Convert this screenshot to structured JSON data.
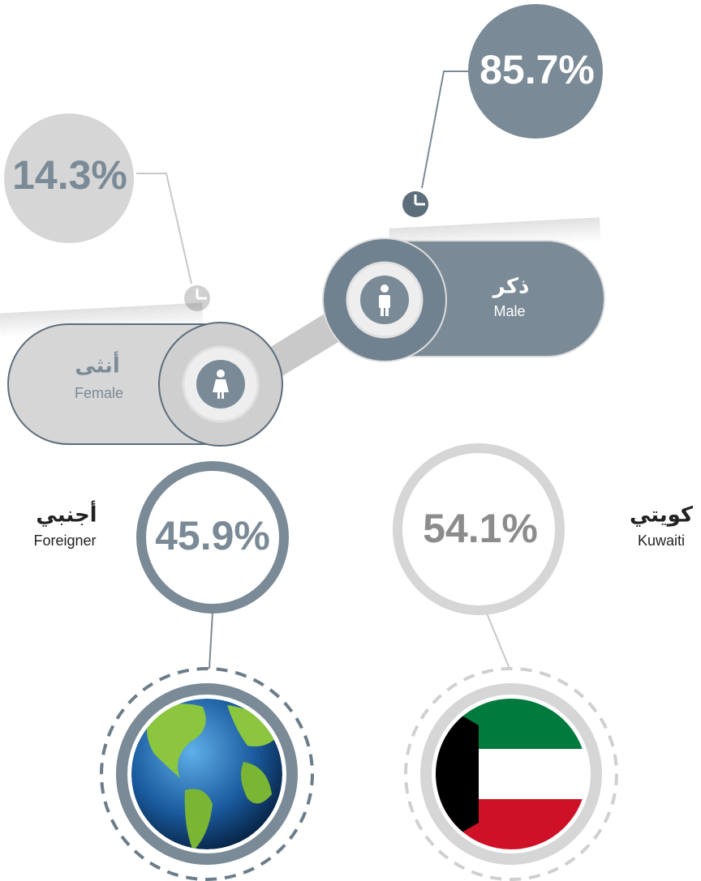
{
  "gender": {
    "male": {
      "percent": "85.7%",
      "label_ar": "ذكر",
      "label_en": "Male"
    },
    "female": {
      "percent": "14.3%",
      "label_ar": "أنثى",
      "label_en": "Female"
    }
  },
  "nationality": {
    "foreigner": {
      "percent": "45.9%",
      "label_ar": "أجنبي",
      "label_en": "Foreigner"
    },
    "kuwaiti": {
      "percent": "54.1%",
      "label_ar": "كويتي",
      "label_en": "Kuwaiti"
    }
  }
}
